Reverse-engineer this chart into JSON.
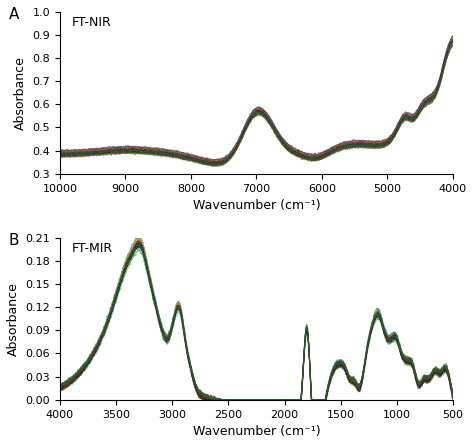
{
  "nir_label": "FT-NIR",
  "mir_label": "FT-MIR",
  "panel_a": "A",
  "panel_b": "B",
  "xlabel": "Wavenumber (cm⁻¹)",
  "ylabel": "Absorbance",
  "nir_xlim": [
    10000,
    4000
  ],
  "nir_ylim": [
    0.3,
    1.0
  ],
  "nir_yticks": [
    0.3,
    0.4,
    0.5,
    0.6,
    0.7,
    0.8,
    0.9,
    1.0
  ],
  "nir_xticks": [
    10000,
    9000,
    8000,
    7000,
    6000,
    5000,
    4000
  ],
  "mir_xlim": [
    4000,
    500
  ],
  "mir_ylim": [
    0.0,
    0.21
  ],
  "mir_yticks": [
    0.0,
    0.03,
    0.06,
    0.09,
    0.12,
    0.15,
    0.18,
    0.21
  ],
  "mir_xticks": [
    4000,
    3500,
    3000,
    2500,
    2000,
    1500,
    1000,
    500
  ],
  "n_spectra": 20,
  "colors": [
    "#440088",
    "#6600bb",
    "#220099",
    "#0000bb",
    "#0044cc",
    "#006688",
    "#008855",
    "#22aa00",
    "#77aa00",
    "#999900",
    "#bb7700",
    "#bb3300",
    "#992200",
    "#771100",
    "#550033",
    "#330055",
    "#002277",
    "#004466",
    "#116644",
    "#447700"
  ],
  "line_alpha": 0.55,
  "line_width": 0.7,
  "background_color": "#ffffff",
  "tick_fontsize": 8,
  "label_fontsize": 9,
  "annotation_fontsize": 9
}
